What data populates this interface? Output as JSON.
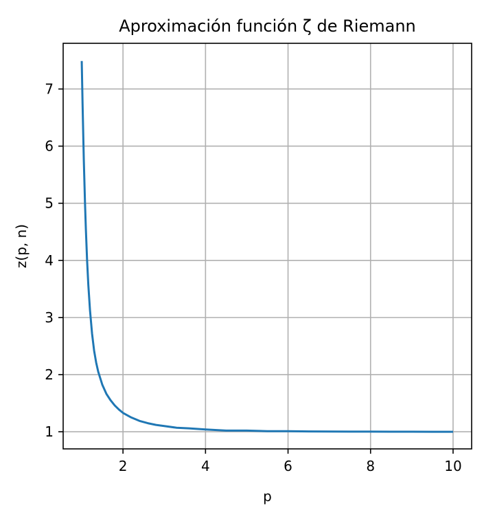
{
  "chart_data": {
    "type": "line",
    "title": "Aproximación función ζ de Riemann",
    "xlabel": "p",
    "ylabel": "z(p, n)",
    "xlim": [
      0.55,
      10.45
    ],
    "ylim": [
      0.7,
      7.8
    ],
    "xticks": [
      2,
      4,
      6,
      8,
      10
    ],
    "yticks": [
      1,
      2,
      3,
      4,
      5,
      6,
      7
    ],
    "grid": true,
    "series": [
      {
        "color": "#1f77b4",
        "x": [
          1.0,
          1.02,
          1.05,
          1.08,
          1.1,
          1.13,
          1.16,
          1.2,
          1.25,
          1.3,
          1.35,
          1.4,
          1.5,
          1.6,
          1.7,
          1.8,
          1.9,
          2.0,
          2.2,
          2.4,
          2.6,
          2.8,
          3.0,
          3.3,
          3.6,
          4.0,
          4.5,
          5.0,
          5.5,
          6.0,
          6.5,
          7.0,
          7.5,
          8.0,
          8.5,
          9.0,
          9.5,
          10.0
        ],
        "y": [
          7.49,
          6.75,
          5.77,
          4.99,
          4.55,
          4.0,
          3.57,
          3.13,
          2.72,
          2.42,
          2.21,
          2.05,
          1.82,
          1.66,
          1.55,
          1.46,
          1.39,
          1.33,
          1.25,
          1.19,
          1.15,
          1.12,
          1.1,
          1.07,
          1.06,
          1.04,
          1.02,
          1.02,
          1.01,
          1.01,
          1.006,
          1.004,
          1.003,
          1.002,
          1.001,
          1.001,
          1.0,
          1.0
        ]
      }
    ]
  }
}
